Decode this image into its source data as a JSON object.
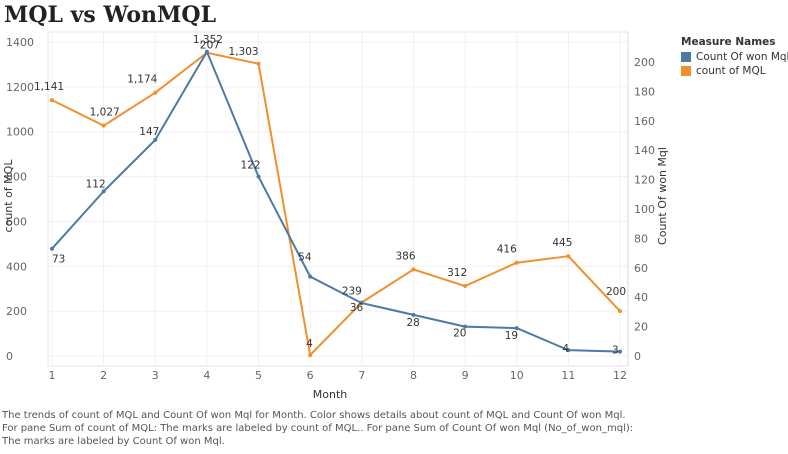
{
  "title": "MQL vs WonMQL",
  "legend": {
    "title": "Measure Names",
    "items": [
      {
        "label": "Count Of won Mql",
        "color": "#4E79A7"
      },
      {
        "label": "count of MQL",
        "color": "#F28E2B"
      }
    ]
  },
  "caption": [
    "The trends of count of MQL and Count Of won Mql for Month.  Color shows details about count of MQL and Count Of won Mql.",
    "For pane Sum of count of MQL:  The marks are labeled by count of MQL.. For pane Sum of Count Of won Mql (No_of_won_mql):",
    "The marks are labeled by Count Of won Mql."
  ],
  "chart_data": {
    "type": "line",
    "xlabel": "Month",
    "categories": [
      "1",
      "2",
      "3",
      "4",
      "5",
      "6",
      "7",
      "8",
      "9",
      "10",
      "11",
      "12"
    ],
    "y_left": {
      "label": "count of MQL",
      "range": [
        0,
        1400
      ],
      "ticks": [
        "0",
        "200",
        "400",
        "600",
        "800",
        "1000",
        "1200",
        "1400"
      ]
    },
    "y_right": {
      "label": "Count Of won Mql",
      "range": [
        0,
        200
      ],
      "ticks": [
        "0",
        "20",
        "40",
        "60",
        "80",
        "100",
        "120",
        "140",
        "160",
        "180",
        "200"
      ]
    },
    "grid": true,
    "legend_position": "top-right",
    "series": [
      {
        "name": "count of MQL",
        "axis": "left",
        "color": "#F28E2B",
        "values": [
          1141,
          1027,
          1174,
          1352,
          1303,
          4,
          239,
          386,
          312,
          416,
          445,
          200
        ],
        "labels": [
          "1,141",
          "1,027",
          "1,174",
          "1,352",
          "1,303",
          "4",
          "239",
          "386",
          "312",
          "416",
          "445",
          "200"
        ]
      },
      {
        "name": "Count Of won Mql",
        "axis": "right",
        "color": "#4E79A7",
        "values": [
          73,
          112,
          147,
          207,
          122,
          54,
          36,
          28,
          20,
          19,
          4,
          3
        ],
        "labels": [
          "73",
          "112",
          "147",
          "207",
          "122",
          "54",
          "36",
          "28",
          "20",
          "19",
          "4",
          "3"
        ]
      }
    ]
  }
}
